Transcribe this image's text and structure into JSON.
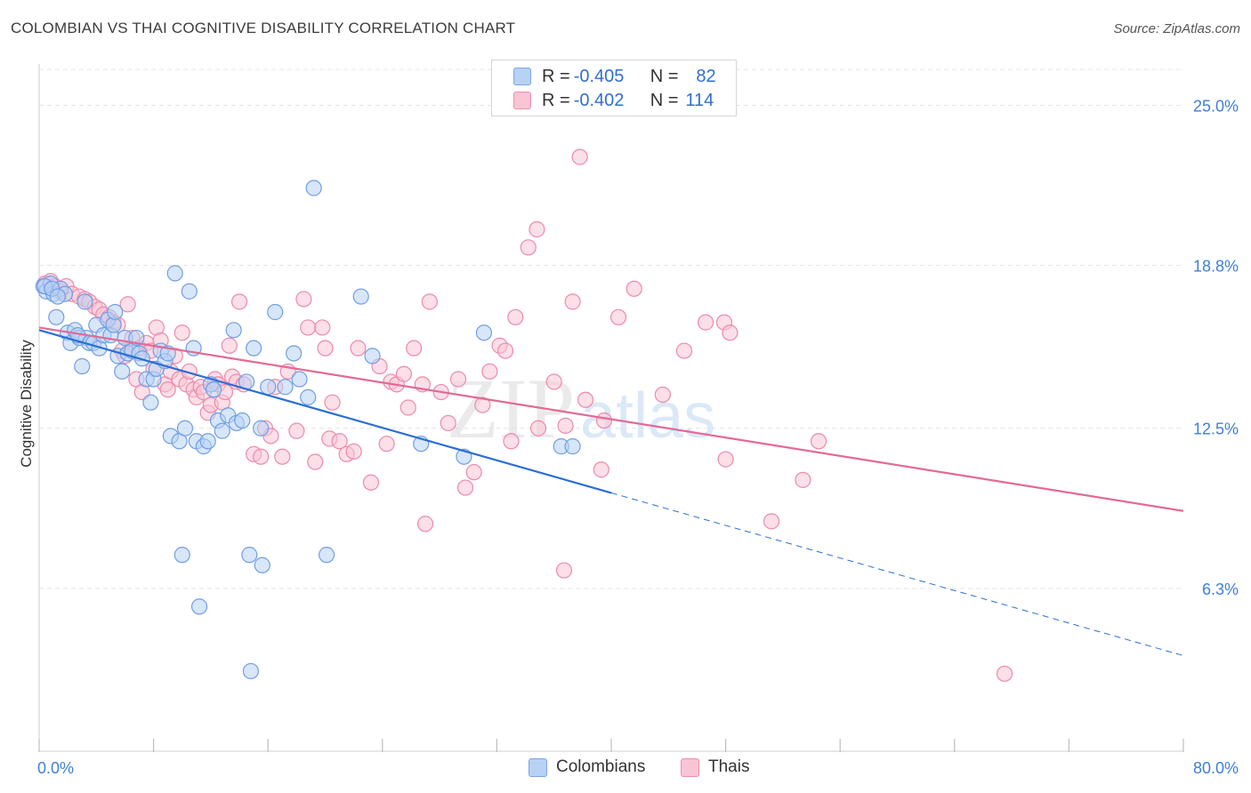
{
  "title": "COLOMBIAN VS THAI COGNITIVE DISABILITY CORRELATION CHART",
  "source": "Source: ZipAtlas.com",
  "watermark": {
    "zip": "ZIP",
    "atlas": "atlas"
  },
  "legend": {
    "r_label": "R = ",
    "n_label": "N = ",
    "series": [
      {
        "name": "Colombians",
        "r": "-0.405",
        "n": "82",
        "fill": "#b8d2f5",
        "stroke": "#6f9fe3",
        "line": "#2a6fd4"
      },
      {
        "name": "Thais",
        "r": "-0.402",
        "n": "114",
        "fill": "#f9c4d4",
        "stroke": "#ec8aab",
        "line": "#e26a95"
      }
    ]
  },
  "colors": {
    "axis_text": "#3f7fd6",
    "grid": "#e3e3e3"
  },
  "chart_data": {
    "type": "scatter",
    "title": "COLOMBIAN VS THAI COGNITIVE DISABILITY CORRELATION CHART",
    "xlabel": "",
    "ylabel": "Cognitive Disability",
    "xlim": [
      0,
      80
    ],
    "ylim": [
      0,
      26.6
    ],
    "x_tick_labels": [
      {
        "value": 0,
        "label": "0.0%"
      },
      {
        "value": 80,
        "label": "80.0%"
      }
    ],
    "y_tick_labels": [
      {
        "value": 6.3,
        "label": "6.3%"
      },
      {
        "value": 12.5,
        "label": "12.5%"
      },
      {
        "value": 18.8,
        "label": "18.8%"
      },
      {
        "value": 25.0,
        "label": "25.0%"
      }
    ],
    "x_minor_ticks": [
      0,
      8,
      16,
      24,
      32,
      40,
      48,
      56,
      64,
      72,
      80
    ],
    "series": [
      {
        "name": "Colombians",
        "trend": {
          "x0": 0,
          "y0": 16.3,
          "x1": 40,
          "y1": 10.0,
          "dash_to_x": 80,
          "dash_to_y": 3.7
        },
        "points": [
          [
            0.3,
            18.0
          ],
          [
            0.5,
            17.8
          ],
          [
            0.8,
            18.1
          ],
          [
            1.0,
            17.7
          ],
          [
            1.2,
            16.8
          ],
          [
            1.5,
            17.9
          ],
          [
            1.8,
            17.7
          ],
          [
            2.0,
            16.2
          ],
          [
            2.2,
            15.8
          ],
          [
            2.5,
            16.3
          ],
          [
            2.8,
            16.0
          ],
          [
            3.0,
            14.9
          ],
          [
            3.2,
            17.4
          ],
          [
            3.3,
            16.0
          ],
          [
            3.5,
            15.8
          ],
          [
            3.8,
            15.8
          ],
          [
            4.0,
            16.5
          ],
          [
            4.2,
            15.6
          ],
          [
            4.5,
            16.1
          ],
          [
            4.8,
            16.7
          ],
          [
            5.0,
            16.1
          ],
          [
            5.2,
            16.5
          ],
          [
            5.3,
            17.0
          ],
          [
            5.5,
            15.3
          ],
          [
            5.8,
            14.7
          ],
          [
            6.0,
            16.0
          ],
          [
            6.2,
            15.4
          ],
          [
            6.5,
            15.5
          ],
          [
            6.8,
            16.0
          ],
          [
            7.0,
            15.4
          ],
          [
            7.2,
            15.2
          ],
          [
            7.5,
            14.4
          ],
          [
            7.8,
            13.5
          ],
          [
            8.0,
            14.4
          ],
          [
            8.2,
            14.8
          ],
          [
            8.5,
            15.5
          ],
          [
            8.8,
            15.1
          ],
          [
            9.0,
            15.4
          ],
          [
            9.2,
            12.2
          ],
          [
            9.5,
            18.5
          ],
          [
            9.8,
            12.0
          ],
          [
            10.2,
            12.5
          ],
          [
            10.5,
            17.8
          ],
          [
            10.8,
            15.6
          ],
          [
            11.0,
            12.0
          ],
          [
            11.5,
            11.8
          ],
          [
            11.8,
            12.0
          ],
          [
            12.0,
            14.2
          ],
          [
            12.2,
            14.0
          ],
          [
            12.5,
            12.8
          ],
          [
            12.8,
            12.4
          ],
          [
            13.2,
            13.0
          ],
          [
            13.6,
            16.3
          ],
          [
            13.8,
            12.7
          ],
          [
            14.2,
            12.8
          ],
          [
            14.5,
            14.3
          ],
          [
            15.0,
            15.6
          ],
          [
            15.5,
            12.5
          ],
          [
            16.0,
            14.1
          ],
          [
            16.5,
            17.0
          ],
          [
            17.2,
            14.1
          ],
          [
            17.8,
            15.4
          ],
          [
            18.2,
            14.4
          ],
          [
            18.8,
            13.7
          ],
          [
            19.2,
            21.8
          ],
          [
            20.1,
            7.6
          ],
          [
            10.0,
            7.6
          ],
          [
            11.2,
            5.6
          ],
          [
            14.8,
            3.1
          ],
          [
            14.7,
            7.6
          ],
          [
            15.6,
            7.2
          ],
          [
            22.5,
            17.6
          ],
          [
            23.3,
            15.3
          ],
          [
            26.7,
            11.9
          ],
          [
            29.7,
            11.4
          ],
          [
            31.1,
            16.2
          ],
          [
            36.5,
            11.8
          ],
          [
            37.3,
            11.8
          ],
          [
            0.4,
            18.0
          ],
          [
            0.9,
            17.9
          ],
          [
            1.3,
            17.6
          ],
          [
            2.7,
            16.1
          ]
        ]
      },
      {
        "name": "Thais",
        "trend": {
          "x0": 0,
          "y0": 16.4,
          "x1": 80,
          "y1": 9.3
        },
        "points": [
          [
            0.4,
            18.1
          ],
          [
            0.8,
            18.2
          ],
          [
            1.1,
            18.0
          ],
          [
            1.5,
            17.8
          ],
          [
            1.9,
            18.0
          ],
          [
            2.3,
            17.7
          ],
          [
            2.8,
            17.6
          ],
          [
            3.2,
            17.5
          ],
          [
            3.5,
            17.4
          ],
          [
            3.9,
            17.2
          ],
          [
            4.2,
            17.1
          ],
          [
            4.5,
            16.9
          ],
          [
            4.9,
            16.8
          ],
          [
            5.2,
            16.6
          ],
          [
            5.5,
            16.5
          ],
          [
            5.8,
            15.5
          ],
          [
            6.0,
            15.3
          ],
          [
            6.2,
            17.3
          ],
          [
            6.5,
            16.0
          ],
          [
            6.8,
            14.4
          ],
          [
            7.0,
            15.6
          ],
          [
            7.2,
            13.9
          ],
          [
            7.5,
            15.8
          ],
          [
            7.8,
            15.5
          ],
          [
            8.0,
            14.8
          ],
          [
            8.2,
            16.4
          ],
          [
            8.5,
            15.9
          ],
          [
            8.8,
            14.2
          ],
          [
            9.0,
            14.0
          ],
          [
            9.2,
            14.7
          ],
          [
            9.5,
            15.3
          ],
          [
            9.8,
            14.4
          ],
          [
            10.0,
            16.2
          ],
          [
            10.3,
            14.2
          ],
          [
            10.5,
            14.7
          ],
          [
            10.8,
            14.0
          ],
          [
            11.0,
            13.7
          ],
          [
            11.3,
            14.1
          ],
          [
            11.5,
            13.9
          ],
          [
            11.8,
            13.1
          ],
          [
            12.0,
            13.4
          ],
          [
            12.3,
            14.4
          ],
          [
            12.5,
            14.2
          ],
          [
            12.8,
            13.5
          ],
          [
            13.0,
            13.9
          ],
          [
            13.3,
            15.7
          ],
          [
            13.5,
            14.5
          ],
          [
            13.8,
            14.3
          ],
          [
            14.0,
            17.4
          ],
          [
            14.3,
            14.2
          ],
          [
            15.0,
            11.5
          ],
          [
            15.5,
            11.4
          ],
          [
            15.8,
            12.5
          ],
          [
            16.2,
            12.2
          ],
          [
            16.5,
            14.1
          ],
          [
            17.0,
            11.4
          ],
          [
            17.4,
            14.7
          ],
          [
            18.0,
            12.4
          ],
          [
            18.5,
            17.5
          ],
          [
            18.8,
            16.4
          ],
          [
            19.3,
            11.2
          ],
          [
            19.8,
            16.4
          ],
          [
            20.0,
            15.6
          ],
          [
            20.3,
            12.1
          ],
          [
            20.5,
            13.5
          ],
          [
            21.0,
            12.0
          ],
          [
            21.5,
            11.5
          ],
          [
            22.0,
            11.6
          ],
          [
            22.3,
            15.6
          ],
          [
            23.2,
            10.4
          ],
          [
            23.8,
            14.9
          ],
          [
            24.3,
            11.9
          ],
          [
            24.6,
            14.3
          ],
          [
            25.0,
            14.2
          ],
          [
            25.5,
            14.6
          ],
          [
            25.8,
            13.3
          ],
          [
            26.2,
            15.6
          ],
          [
            26.8,
            14.2
          ],
          [
            27.3,
            17.4
          ],
          [
            28.1,
            13.9
          ],
          [
            28.6,
            12.7
          ],
          [
            29.3,
            14.4
          ],
          [
            29.8,
            10.2
          ],
          [
            30.4,
            10.8
          ],
          [
            31.0,
            13.4
          ],
          [
            31.5,
            14.7
          ],
          [
            32.2,
            15.7
          ],
          [
            32.6,
            15.5
          ],
          [
            33.0,
            12.0
          ],
          [
            33.3,
            16.8
          ],
          [
            34.2,
            19.5
          ],
          [
            34.8,
            20.2
          ],
          [
            34.9,
            12.5
          ],
          [
            36.0,
            14.3
          ],
          [
            36.8,
            12.6
          ],
          [
            37.3,
            17.4
          ],
          [
            37.8,
            23.0
          ],
          [
            38.2,
            13.6
          ],
          [
            39.3,
            10.9
          ],
          [
            39.5,
            12.8
          ],
          [
            40.5,
            16.8
          ],
          [
            41.6,
            17.9
          ],
          [
            43.6,
            13.8
          ],
          [
            45.1,
            15.5
          ],
          [
            46.6,
            16.6
          ],
          [
            47.9,
            16.6
          ],
          [
            48.3,
            16.2
          ],
          [
            48.0,
            11.3
          ],
          [
            51.2,
            8.9
          ],
          [
            53.4,
            10.5
          ],
          [
            54.5,
            12.0
          ],
          [
            27.0,
            8.8
          ],
          [
            36.7,
            7.0
          ],
          [
            67.5,
            3.0
          ]
        ]
      }
    ]
  }
}
